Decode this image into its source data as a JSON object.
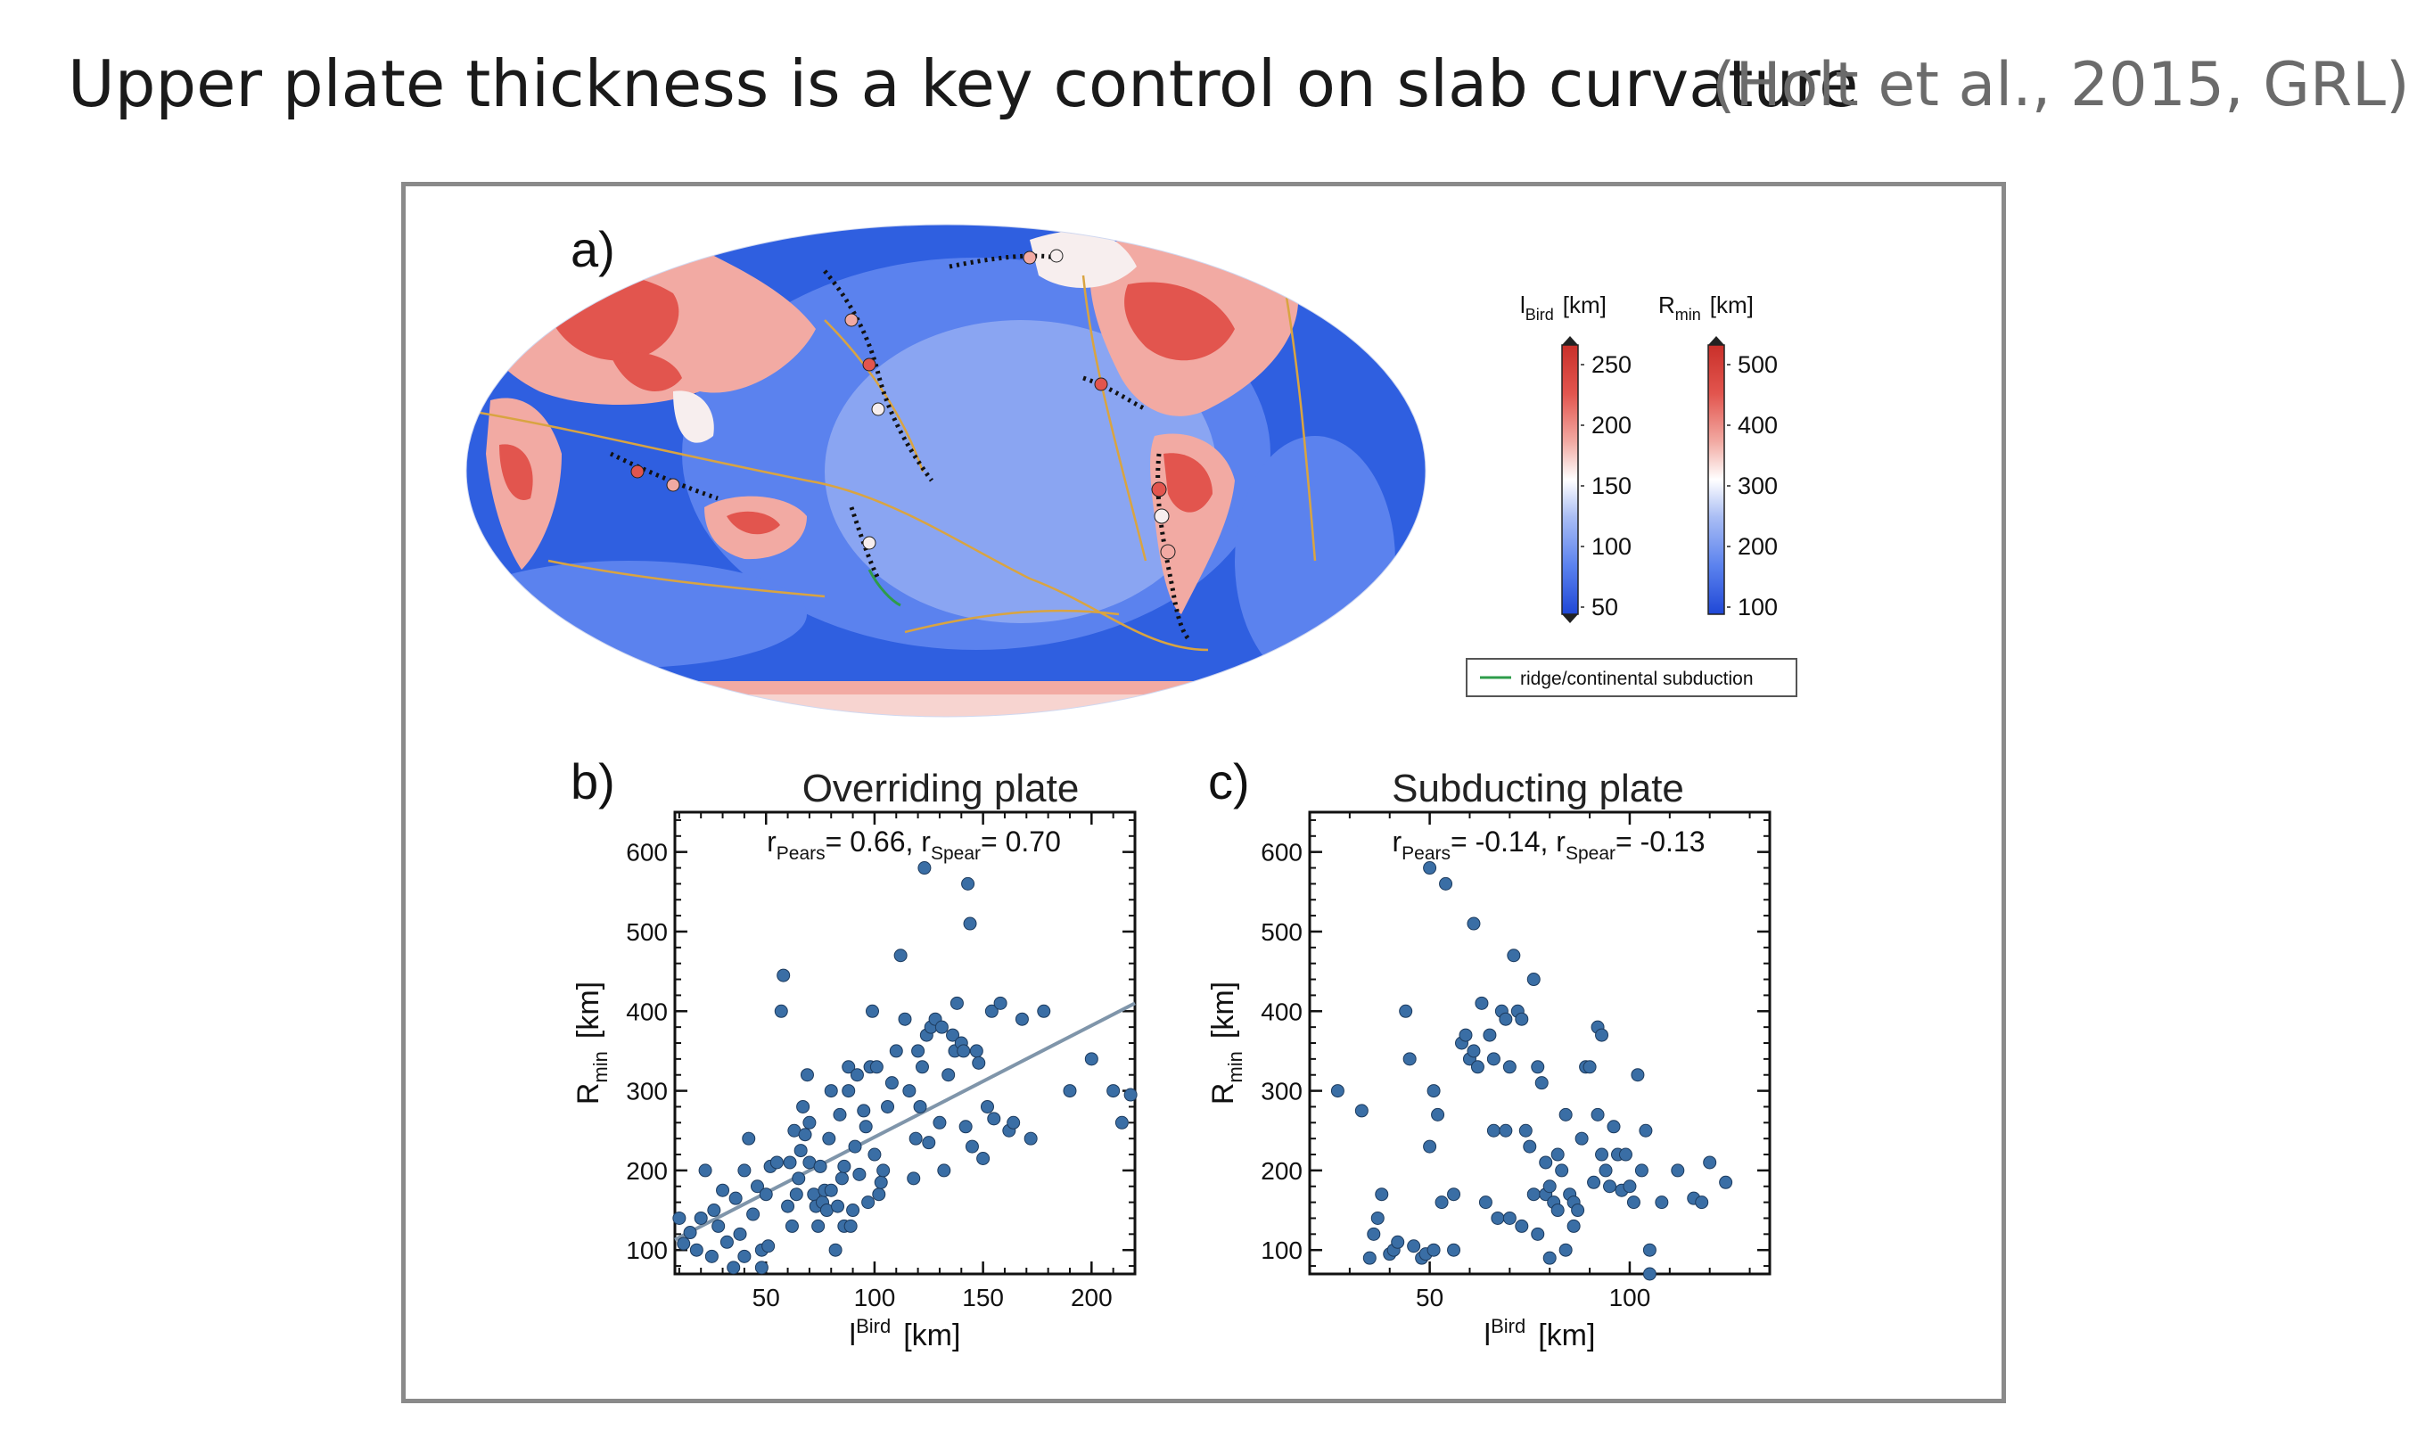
{
  "slide": {
    "title": "Upper plate thickness is a key control on slab curvature",
    "citation": "(Holt et al., 2015, GRL)"
  },
  "panels": {
    "a": {
      "label": "a)",
      "legend_ridge": "ridge/continental subduction",
      "colorbar_lbird": {
        "name": "l",
        "sub": "Bird",
        "unit": "[km]",
        "ticks": [
          "250",
          "200",
          "150",
          "100",
          "50"
        ]
      },
      "colorbar_rmin": {
        "name": "R",
        "sub": "min",
        "unit": "[km]",
        "ticks": [
          "500",
          "400",
          "300",
          "200",
          "100"
        ]
      },
      "colors": {
        "ocean_deep": "#2f5fe0",
        "ocean_mid": "#5b82ee",
        "ocean_light": "#9ab2f4",
        "land_red": "#e2554e",
        "land_pink": "#f2aaa3",
        "land_white": "#f7eeee",
        "plate_boundary": "#d9a441",
        "ridge_green": "#2e9c4a"
      }
    },
    "b": {
      "label": "b)",
      "title": "Overriding plate",
      "stat_prefix": "r",
      "stat_sub1": "Pears",
      "stat_mid": "= 0.66, r",
      "stat_sub2": "Spear",
      "stat_suffix": "= 0.70"
    },
    "c": {
      "label": "c)",
      "title": "Subducting plate",
      "stat_prefix": "r",
      "stat_sub1": "Pears",
      "stat_mid": "= -0.14, r",
      "stat_sub2": "Spear",
      "stat_suffix": "= -0.13"
    }
  },
  "chart_data": [
    {
      "type": "scatter",
      "panel": "b",
      "title": "Overriding plate",
      "xlabel": {
        "base": "l",
        "sup": "Bird",
        "unit": "[km]"
      },
      "ylabel": {
        "base": "R",
        "sub": "min",
        "unit": "[km]"
      },
      "xlim": [
        8,
        220
      ],
      "ylim": [
        70,
        650
      ],
      "xticks": [
        50,
        100,
        150,
        200
      ],
      "yticks": [
        100,
        200,
        300,
        400,
        500,
        600
      ],
      "marker_color": "#3a6ea5",
      "fit_line": {
        "x": [
          8,
          220
        ],
        "y": [
          113,
          410
        ],
        "color": "#7f95aa"
      },
      "points": [
        [
          10,
          140
        ],
        [
          12,
          108
        ],
        [
          15,
          122
        ],
        [
          18,
          100
        ],
        [
          20,
          140
        ],
        [
          22,
          200
        ],
        [
          25,
          92
        ],
        [
          26,
          150
        ],
        [
          28,
          130
        ],
        [
          30,
          175
        ],
        [
          32,
          110
        ],
        [
          35,
          78
        ],
        [
          36,
          165
        ],
        [
          38,
          120
        ],
        [
          40,
          200
        ],
        [
          40,
          92
        ],
        [
          42,
          240
        ],
        [
          44,
          145
        ],
        [
          46,
          180
        ],
        [
          48,
          100
        ],
        [
          48,
          78
        ],
        [
          50,
          170
        ],
        [
          51,
          105
        ],
        [
          52,
          205
        ],
        [
          55,
          210
        ],
        [
          57,
          400
        ],
        [
          58,
          445
        ],
        [
          60,
          155
        ],
        [
          61,
          210
        ],
        [
          62,
          130
        ],
        [
          63,
          250
        ],
        [
          64,
          170
        ],
        [
          65,
          190
        ],
        [
          66,
          225
        ],
        [
          67,
          280
        ],
        [
          68,
          245
        ],
        [
          69,
          320
        ],
        [
          70,
          260
        ],
        [
          70,
          210
        ],
        [
          72,
          170
        ],
        [
          73,
          155
        ],
        [
          74,
          130
        ],
        [
          75,
          205
        ],
        [
          76,
          160
        ],
        [
          77,
          175
        ],
        [
          78,
          150
        ],
        [
          79,
          240
        ],
        [
          80,
          300
        ],
        [
          80,
          175
        ],
        [
          82,
          100
        ],
        [
          83,
          155
        ],
        [
          84,
          270
        ],
        [
          85,
          190
        ],
        [
          86,
          130
        ],
        [
          86,
          205
        ],
        [
          88,
          300
        ],
        [
          88,
          330
        ],
        [
          89,
          130
        ],
        [
          90,
          150
        ],
        [
          91,
          230
        ],
        [
          92,
          320
        ],
        [
          93,
          195
        ],
        [
          95,
          275
        ],
        [
          96,
          255
        ],
        [
          97,
          160
        ],
        [
          98,
          330
        ],
        [
          99,
          400
        ],
        [
          100,
          220
        ],
        [
          101,
          330
        ],
        [
          102,
          170
        ],
        [
          103,
          185
        ],
        [
          104,
          200
        ],
        [
          106,
          280
        ],
        [
          108,
          310
        ],
        [
          110,
          350
        ],
        [
          112,
          470
        ],
        [
          114,
          390
        ],
        [
          116,
          300
        ],
        [
          118,
          190
        ],
        [
          119,
          240
        ],
        [
          120,
          350
        ],
        [
          121,
          280
        ],
        [
          122,
          330
        ],
        [
          123,
          580
        ],
        [
          124,
          370
        ],
        [
          125,
          235
        ],
        [
          126,
          380
        ],
        [
          128,
          390
        ],
        [
          130,
          260
        ],
        [
          131,
          380
        ],
        [
          132,
          200
        ],
        [
          134,
          320
        ],
        [
          136,
          370
        ],
        [
          137,
          350
        ],
        [
          138,
          410
        ],
        [
          140,
          360
        ],
        [
          141,
          350
        ],
        [
          142,
          255
        ],
        [
          143,
          560
        ],
        [
          144,
          510
        ],
        [
          145,
          230
        ],
        [
          147,
          350
        ],
        [
          148,
          335
        ],
        [
          150,
          215
        ],
        [
          152,
          280
        ],
        [
          154,
          400
        ],
        [
          155,
          265
        ],
        [
          158,
          410
        ],
        [
          162,
          250
        ],
        [
          164,
          260
        ],
        [
          168,
          390
        ],
        [
          172,
          240
        ],
        [
          178,
          400
        ],
        [
          190,
          300
        ],
        [
          200,
          340
        ],
        [
          210,
          300
        ],
        [
          214,
          260
        ],
        [
          218,
          295
        ]
      ]
    },
    {
      "type": "scatter",
      "panel": "c",
      "title": "Subducting plate",
      "xlabel": {
        "base": "l",
        "sup": "Bird",
        "unit": "[km]"
      },
      "ylabel": {
        "base": "R",
        "sub": "min",
        "unit": "[km]"
      },
      "xlim": [
        20,
        135
      ],
      "ylim": [
        70,
        650
      ],
      "xticks": [
        50,
        100
      ],
      "yticks": [
        100,
        200,
        300,
        400,
        500,
        600
      ],
      "marker_color": "#3a6ea5",
      "points": [
        [
          27,
          300
        ],
        [
          33,
          275
        ],
        [
          35,
          90
        ],
        [
          36,
          120
        ],
        [
          37,
          140
        ],
        [
          38,
          170
        ],
        [
          40,
          95
        ],
        [
          41,
          100
        ],
        [
          42,
          110
        ],
        [
          44,
          400
        ],
        [
          45,
          340
        ],
        [
          46,
          105
        ],
        [
          48,
          90
        ],
        [
          49,
          95
        ],
        [
          50,
          580
        ],
        [
          50,
          230
        ],
        [
          51,
          300
        ],
        [
          51,
          100
        ],
        [
          52,
          270
        ],
        [
          53,
          160
        ],
        [
          54,
          560
        ],
        [
          56,
          100
        ],
        [
          56,
          170
        ],
        [
          58,
          360
        ],
        [
          59,
          370
        ],
        [
          60,
          340
        ],
        [
          61,
          510
        ],
        [
          61,
          350
        ],
        [
          62,
          330
        ],
        [
          63,
          410
        ],
        [
          64,
          160
        ],
        [
          65,
          370
        ],
        [
          66,
          340
        ],
        [
          66,
          250
        ],
        [
          67,
          140
        ],
        [
          68,
          400
        ],
        [
          69,
          390
        ],
        [
          69,
          250
        ],
        [
          70,
          330
        ],
        [
          70,
          140
        ],
        [
          71,
          470
        ],
        [
          72,
          400
        ],
        [
          73,
          130
        ],
        [
          73,
          390
        ],
        [
          74,
          250
        ],
        [
          75,
          230
        ],
        [
          76,
          440
        ],
        [
          76,
          170
        ],
        [
          77,
          330
        ],
        [
          77,
          120
        ],
        [
          78,
          310
        ],
        [
          79,
          210
        ],
        [
          79,
          170
        ],
        [
          80,
          180
        ],
        [
          80,
          90
        ],
        [
          81,
          160
        ],
        [
          82,
          150
        ],
        [
          82,
          220
        ],
        [
          83,
          200
        ],
        [
          84,
          270
        ],
        [
          84,
          100
        ],
        [
          85,
          170
        ],
        [
          86,
          160
        ],
        [
          86,
          130
        ],
        [
          87,
          150
        ],
        [
          88,
          240
        ],
        [
          89,
          330
        ],
        [
          90,
          330
        ],
        [
          91,
          185
        ],
        [
          92,
          270
        ],
        [
          92,
          380
        ],
        [
          93,
          370
        ],
        [
          93,
          220
        ],
        [
          94,
          200
        ],
        [
          95,
          180
        ],
        [
          96,
          255
        ],
        [
          97,
          220
        ],
        [
          98,
          175
        ],
        [
          99,
          220
        ],
        [
          100,
          180
        ],
        [
          101,
          160
        ],
        [
          102,
          320
        ],
        [
          103,
          200
        ],
        [
          104,
          250
        ],
        [
          105,
          100
        ],
        [
          105,
          70
        ],
        [
          108,
          160
        ],
        [
          112,
          200
        ],
        [
          116,
          165
        ],
        [
          118,
          160
        ],
        [
          120,
          210
        ],
        [
          124,
          185
        ]
      ]
    }
  ]
}
